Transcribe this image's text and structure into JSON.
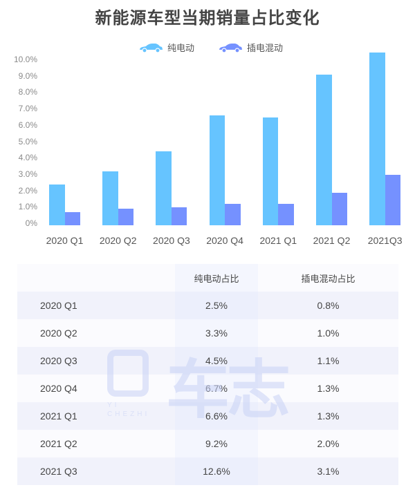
{
  "title": "新能源车型当期销量占比变化",
  "legend": [
    {
      "label": "纯电动",
      "color": "#66C4FF",
      "icon": "car-icon"
    },
    {
      "label": "插电混动",
      "color": "#7591FF",
      "icon": "car-icon"
    }
  ],
  "yaxis": {
    "ticks": [
      "10.0%",
      "9.0%",
      "8.0%",
      "7.0%",
      "6.0%",
      "5.0%",
      "4.0%",
      "3.0%",
      "2.0%",
      "1.0%",
      "0%"
    ]
  },
  "table": {
    "headers": [
      "",
      "纯电动占比",
      "插电混动占比"
    ],
    "rows": [
      [
        "2020 Q1",
        "2.5%",
        "0.8%"
      ],
      [
        "2020 Q2",
        "3.3%",
        "1.0%"
      ],
      [
        "2020 Q3",
        "4.5%",
        "1.1%"
      ],
      [
        "2020 Q4",
        "6.7%",
        "1.3%"
      ],
      [
        "2021 Q1",
        "6.6%",
        "1.3%"
      ],
      [
        "2021 Q2",
        "9.2%",
        "2.0%"
      ],
      [
        "2021 Q3",
        "12.6%",
        "3.1%"
      ]
    ]
  },
  "watermark": {
    "main": "车志",
    "sub_line1": "YI",
    "sub_line2": "CHEZHI",
    "logo": "易"
  },
  "chart_data": {
    "type": "bar",
    "title": "新能源车型当期销量占比变化",
    "categories": [
      "2020 Q1",
      "2020 Q2",
      "2020 Q3",
      "2020 Q4",
      "2021 Q1",
      "2021 Q2",
      "2021Q3"
    ],
    "series": [
      {
        "name": "纯电动",
        "color": "#66C4FF",
        "values": [
          2.5,
          3.3,
          4.5,
          6.7,
          6.6,
          9.2,
          12.6
        ]
      },
      {
        "name": "插电混动",
        "color": "#7591FF",
        "values": [
          0.8,
          1.0,
          1.1,
          1.3,
          1.3,
          2.0,
          3.1
        ]
      }
    ],
    "xlabel": "",
    "ylabel": "",
    "ylim": [
      0,
      10.0
    ],
    "ytick_step": 1.0,
    "grid": false,
    "legend_position": "top",
    "note": "2021Q3 纯电动 bar exceeds axis and is clipped near top"
  }
}
